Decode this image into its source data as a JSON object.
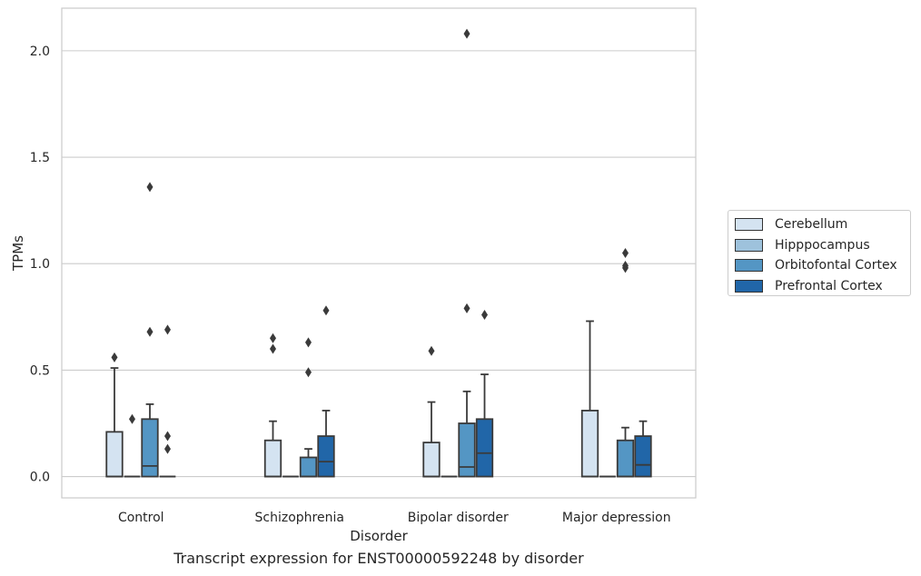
{
  "chart_data": {
    "type": "box",
    "title": "Transcript expression for ENST00000592248 by disorder",
    "xlabel": "Disorder",
    "ylabel": "TPMs",
    "categories": [
      "Control",
      "Schizophrenia",
      "Bipolar disorder",
      "Major depression"
    ],
    "ylim": [
      -0.1,
      2.2
    ],
    "yticks": [
      0.0,
      0.5,
      1.0,
      1.5,
      2.0
    ],
    "ytick_labels": [
      "0.0",
      "0.5",
      "1.0",
      "1.5",
      "2.0"
    ],
    "grid": "horizontal",
    "legend_position": "right",
    "series": [
      {
        "name": "Cerebellum",
        "color": "#d4e3f1",
        "boxes": [
          {
            "q1": 0.0,
            "median": 0.0,
            "q3": 0.21,
            "whisker_low": 0.0,
            "whisker_high": 0.51,
            "outliers": [
              0.56
            ]
          },
          {
            "q1": 0.0,
            "median": 0.0,
            "q3": 0.17,
            "whisker_low": 0.0,
            "whisker_high": 0.26,
            "outliers": [
              0.6,
              0.65
            ]
          },
          {
            "q1": 0.0,
            "median": 0.0,
            "q3": 0.16,
            "whisker_low": 0.0,
            "whisker_high": 0.35,
            "outliers": [
              0.59
            ]
          },
          {
            "q1": 0.0,
            "median": 0.0,
            "q3": 0.31,
            "whisker_low": 0.0,
            "whisker_high": 0.73,
            "outliers": []
          }
        ]
      },
      {
        "name": "Hipppocampus",
        "color": "#9ec2dc",
        "boxes": [
          {
            "q1": 0.0,
            "median": 0.0,
            "q3": 0.0,
            "whisker_low": 0.0,
            "whisker_high": 0.0,
            "outliers": [
              0.27
            ]
          },
          {
            "q1": 0.0,
            "median": 0.0,
            "q3": 0.0,
            "whisker_low": 0.0,
            "whisker_high": 0.0,
            "outliers": []
          },
          {
            "q1": 0.0,
            "median": 0.0,
            "q3": 0.0,
            "whisker_low": 0.0,
            "whisker_high": 0.0,
            "outliers": []
          },
          {
            "q1": 0.0,
            "median": 0.0,
            "q3": 0.0,
            "whisker_low": 0.0,
            "whisker_high": 0.0,
            "outliers": []
          }
        ]
      },
      {
        "name": "Orbitofontal Cortex",
        "color": "#5496c4",
        "boxes": [
          {
            "q1": 0.0,
            "median": 0.05,
            "q3": 0.27,
            "whisker_low": 0.0,
            "whisker_high": 0.34,
            "outliers": [
              0.68,
              1.36
            ]
          },
          {
            "q1": 0.0,
            "median": 0.0,
            "q3": 0.09,
            "whisker_low": 0.0,
            "whisker_high": 0.13,
            "outliers": [
              0.49,
              0.63
            ]
          },
          {
            "q1": 0.0,
            "median": 0.045,
            "q3": 0.25,
            "whisker_low": 0.0,
            "whisker_high": 0.4,
            "outliers": [
              0.79,
              2.08
            ]
          },
          {
            "q1": 0.0,
            "median": 0.0,
            "q3": 0.17,
            "whisker_low": 0.0,
            "whisker_high": 0.23,
            "outliers": [
              0.98,
              0.99,
              1.05
            ]
          }
        ]
      },
      {
        "name": "Prefrontal Cortex",
        "color": "#2166a8",
        "boxes": [
          {
            "q1": 0.0,
            "median": 0.0,
            "q3": 0.0,
            "whisker_low": 0.0,
            "whisker_high": 0.0,
            "outliers": [
              0.13,
              0.19,
              0.69
            ]
          },
          {
            "q1": 0.0,
            "median": 0.07,
            "q3": 0.19,
            "whisker_low": 0.0,
            "whisker_high": 0.31,
            "outliers": [
              0.78
            ]
          },
          {
            "q1": 0.0,
            "median": 0.11,
            "q3": 0.27,
            "whisker_low": 0.0,
            "whisker_high": 0.48,
            "outliers": [
              0.76
            ]
          },
          {
            "q1": 0.0,
            "median": 0.055,
            "q3": 0.19,
            "whisker_low": 0.0,
            "whisker_high": 0.26,
            "outliers": []
          }
        ]
      }
    ]
  }
}
